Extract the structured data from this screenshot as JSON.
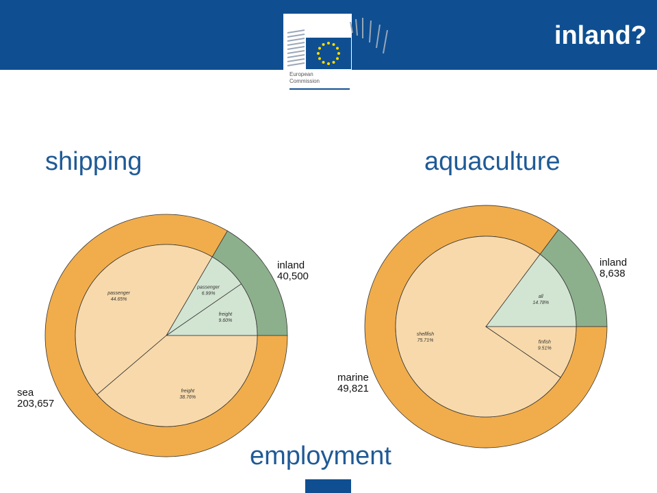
{
  "header": {
    "title": "inland?",
    "logo_text": [
      "European",
      "Commission"
    ]
  },
  "footer_label": "employment",
  "chart_data": [
    {
      "type": "sunburst",
      "title": "shipping",
      "outer": {
        "categories": [
          "inland",
          "sea"
        ],
        "values": [
          40500,
          203657
        ],
        "value_labels": [
          "40,500",
          "203,657"
        ],
        "colors": [
          "#8db08c",
          "#f1ad4b"
        ]
      },
      "inner": {
        "categories": [
          "freight",
          "passenger",
          "passenger",
          "freight"
        ],
        "values": [
          9.6,
          6.99,
          44.65,
          38.76
        ],
        "value_labels": [
          "9.60%",
          "6.99%",
          "44.65%",
          "38.76%"
        ],
        "colors": [
          "#d2e4d2",
          "#d2e4d2",
          "#f7d9ab",
          "#f7d9ab"
        ]
      }
    },
    {
      "type": "sunburst",
      "title": "aquaculture",
      "outer": {
        "categories": [
          "inland",
          "marine"
        ],
        "values": [
          8638,
          49821
        ],
        "value_labels": [
          "8,638",
          "49,821"
        ],
        "colors": [
          "#8db08c",
          "#f1ad4b"
        ]
      },
      "inner": {
        "categories": [
          "all",
          "shellfish",
          "finfish"
        ],
        "values": [
          14.78,
          75.71,
          9.51
        ],
        "value_labels": [
          "14.78%",
          "75.71%",
          "9.51%"
        ],
        "colors": [
          "#d2e4d2",
          "#f7d9ab",
          "#f7d9ab"
        ]
      }
    }
  ]
}
